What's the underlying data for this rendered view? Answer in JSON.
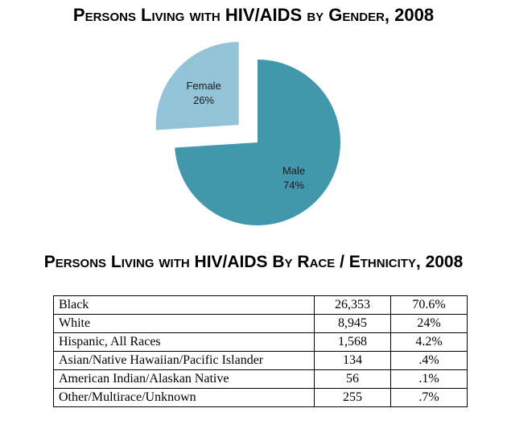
{
  "gender_title": "Persons Living with HIV/AIDS by Gender, 2008",
  "race_title": "Persons Living with HIV/AIDS By Race / Ethnicity, 2008",
  "chart_data": [
    {
      "type": "pie",
      "title": "Persons Living with HIV/AIDS by Gender, 2008",
      "categories": [
        "Male",
        "Female"
      ],
      "values": [
        74,
        26
      ],
      "value_labels": [
        "74%",
        "26%"
      ],
      "colors": [
        "#4198ad",
        "#92c3d7"
      ],
      "exploded": "Female"
    },
    {
      "type": "table",
      "title": "Persons Living with HIV/AIDS By Race / Ethnicity, 2008",
      "rows": [
        {
          "group": "Black",
          "count": "26,353",
          "percent": "70.6%"
        },
        {
          "group": "White",
          "count": "8,945",
          "percent": "24%"
        },
        {
          "group": "Hispanic, All Races",
          "count": "1,568",
          "percent": "4.2%"
        },
        {
          "group": "Asian/Native Hawaiian/Pacific Islander",
          "count": "134",
          "percent": ".4%"
        },
        {
          "group": "American Indian/Alaskan Native",
          "count": "56",
          "percent": ".1%"
        },
        {
          "group": "Other/Multirace/Unknown",
          "count": "255",
          "percent": ".7%"
        }
      ]
    }
  ]
}
